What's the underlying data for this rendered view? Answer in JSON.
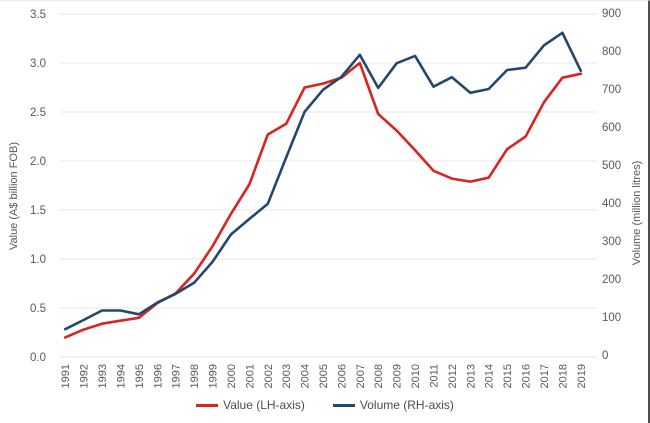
{
  "chart_data": {
    "type": "line",
    "title": "",
    "x": [
      1991,
      1992,
      1993,
      1994,
      1995,
      1996,
      1997,
      1998,
      1999,
      2000,
      2001,
      2002,
      2003,
      2004,
      2005,
      2006,
      2007,
      2008,
      2009,
      2010,
      2011,
      2012,
      2013,
      2014,
      2015,
      2016,
      2017,
      2018,
      2019
    ],
    "series": [
      {
        "name": "Value (LH-axis)",
        "axis": "left",
        "color": "#d92421",
        "values": [
          0.2,
          0.28,
          0.34,
          0.37,
          0.4,
          0.55,
          0.65,
          0.85,
          1.13,
          1.46,
          1.76,
          2.27,
          2.38,
          2.75,
          2.79,
          2.85,
          3.0,
          2.48,
          2.31,
          2.11,
          1.9,
          1.82,
          1.79,
          1.83,
          2.12,
          2.25,
          2.6,
          2.85,
          2.89
        ]
      },
      {
        "name": "Volume (RH-axis)",
        "axis": "right",
        "color": "#26476c",
        "values": [
          68,
          92,
          117,
          117,
          107,
          138,
          161,
          190,
          245,
          317,
          358,
          398,
          520,
          640,
          698,
          732,
          790,
          703,
          768,
          787,
          706,
          731,
          690,
          700,
          750,
          756,
          815,
          848,
          748
        ]
      }
    ],
    "left_axis": {
      "label": "Value (A$ billion FOB)",
      "min": 0,
      "max": 3.5,
      "step": 0.5,
      "ticks": [
        "0.0",
        "0.5",
        "1.0",
        "1.5",
        "2.0",
        "2.5",
        "3.0",
        "3.5"
      ]
    },
    "right_axis": {
      "label": "Volume (million litres)",
      "min": 0,
      "max": 900,
      "step": 100,
      "ticks": [
        "0",
        "100",
        "200",
        "300",
        "400",
        "500",
        "600",
        "700",
        "800",
        "900"
      ]
    },
    "grid": "horizontal",
    "legend_position": "bottom-center"
  },
  "style": {
    "grid_color": "#ececec",
    "tick_color": "#595959",
    "legend_text_color": "#4d4d4d",
    "background": "#ffffff"
  }
}
